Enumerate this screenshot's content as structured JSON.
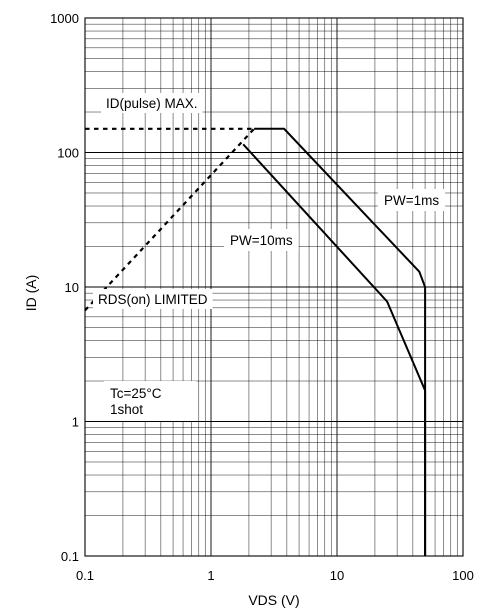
{
  "chart_data": {
    "type": "line",
    "title": "",
    "xlabel": "VDS (V)",
    "ylabel": "ID (A)",
    "x_scale": "log",
    "y_scale": "log",
    "xlim": [
      0.1,
      100
    ],
    "ylim": [
      0.1,
      1000
    ],
    "grid": true,
    "x_ticks": [
      {
        "value": 0.1,
        "label": "0.1"
      },
      {
        "value": 1,
        "label": "1"
      },
      {
        "value": 10,
        "label": "10"
      },
      {
        "value": 100,
        "label": "100"
      }
    ],
    "y_ticks": [
      {
        "value": 0.1,
        "label": "0.1"
      },
      {
        "value": 1,
        "label": "1"
      },
      {
        "value": 10,
        "label": "10"
      },
      {
        "value": 100,
        "label": "100"
      },
      {
        "value": 1000,
        "label": "1000"
      }
    ],
    "series": [
      {
        "name": "PW=1ms",
        "style": "solid",
        "x": [
          2.2,
          3.8,
          45,
          50,
          50
        ],
        "y": [
          150,
          150,
          13,
          10,
          0.1
        ]
      },
      {
        "name": "PW=10ms",
        "style": "solid",
        "x": [
          1.8,
          25,
          50,
          50
        ],
        "y": [
          115,
          7.8,
          1.7,
          0.1
        ]
      },
      {
        "name": "ID(pulse) MAX.",
        "style": "dashed",
        "x": [
          0.1,
          2.2
        ],
        "y": [
          150,
          150
        ]
      },
      {
        "name": "RDS(on) LIMITED",
        "style": "dashed",
        "x": [
          0.1,
          2.2
        ],
        "y": [
          6.7,
          150
        ]
      }
    ],
    "annotations": [
      {
        "id": "idpulse",
        "text": "ID(pulse)  MAX."
      },
      {
        "id": "pw1",
        "text": "PW=1ms"
      },
      {
        "id": "pw10",
        "text": "PW=10ms"
      },
      {
        "id": "rds",
        "text": "RDS(on)  LIMITED"
      },
      {
        "id": "tc",
        "text": "Tc=25°C"
      },
      {
        "id": "shot",
        "text": "1shot"
      }
    ]
  }
}
